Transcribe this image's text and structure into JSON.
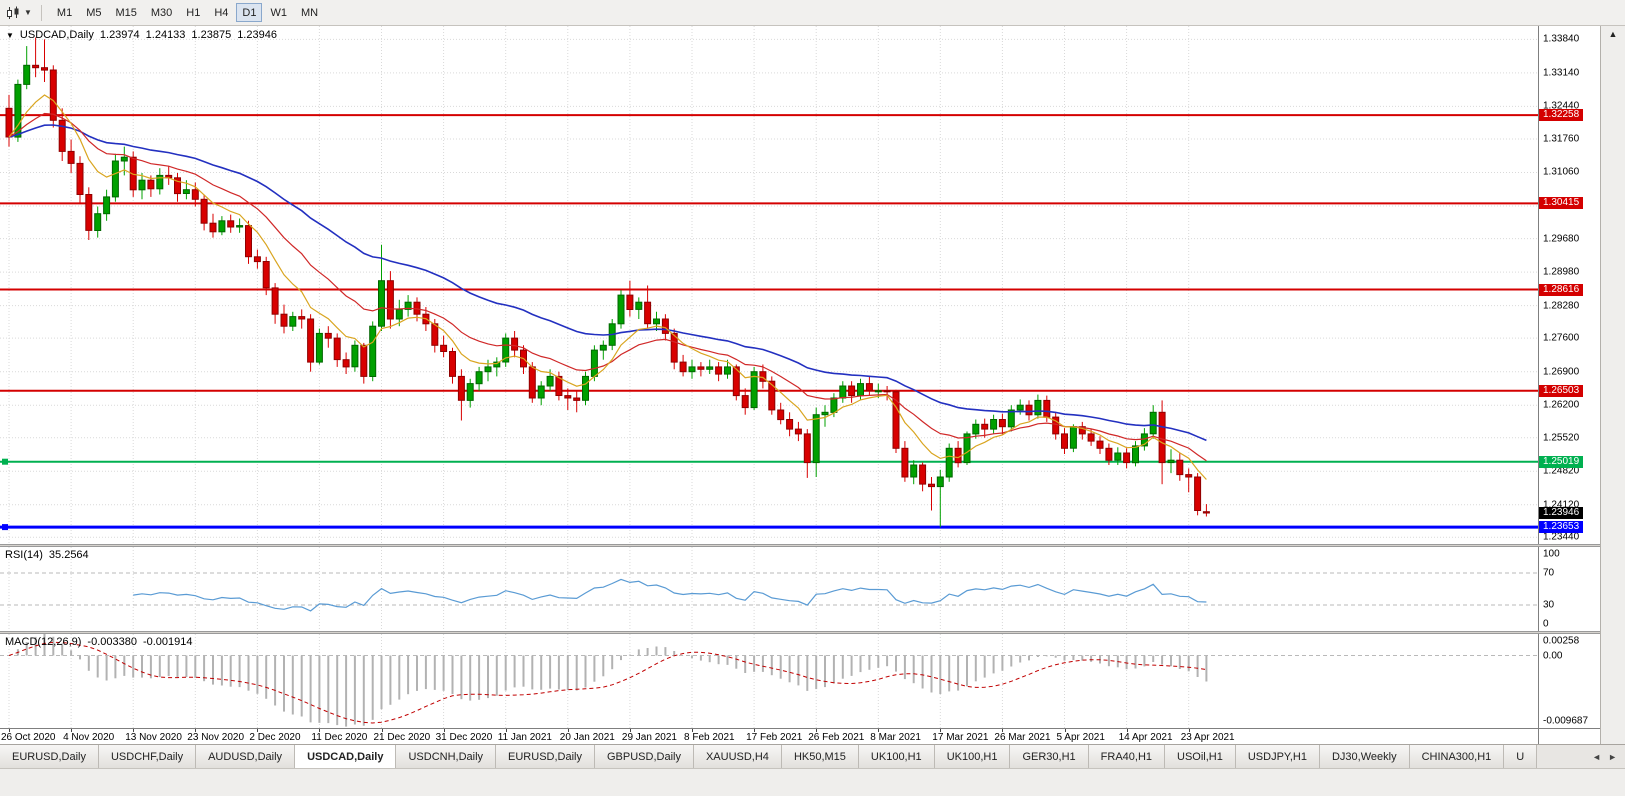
{
  "icons": {
    "collapse_triangle": "▼",
    "toolbar_caret": "▼",
    "strip_arrow": "▲"
  },
  "toolbar": {
    "timeframes": [
      "M1",
      "M5",
      "M15",
      "M30",
      "H1",
      "H4",
      "D1",
      "W1",
      "MN"
    ],
    "selected": "D1"
  },
  "chart": {
    "symbol_period": "USDCAD,Daily",
    "open": "1.23974",
    "high": "1.24133",
    "low": "1.23875",
    "close": "1.23946"
  },
  "rsi": {
    "name": "RSI(14)",
    "value": "35.2564",
    "period": 14,
    "levels": [
      70,
      30
    ],
    "scale": [
      "100",
      "70",
      "30",
      "0"
    ],
    "color": "#5a9bd4"
  },
  "macd": {
    "name": "MACD(12,26,9)",
    "value_main": "-0.003380",
    "value_signal": "-0.001914",
    "range": [
      -0.009687,
      0.00258
    ],
    "scale": [
      "0.00258",
      "0.00",
      "-0.009687"
    ],
    "histogram_color": "#b2b2b2",
    "signal_color": "#c00000"
  },
  "tabs": {
    "scroll_left": "◄",
    "scroll_right": "►",
    "items": [
      {
        "label": "EURUSD,Daily",
        "active": false
      },
      {
        "label": "USDCHF,Daily",
        "active": false
      },
      {
        "label": "AUDUSD,Daily",
        "active": false
      },
      {
        "label": "USDCAD,Daily",
        "active": true
      },
      {
        "label": "USDCNH,Daily",
        "active": false
      },
      {
        "label": "EURUSD,Daily",
        "active": false
      },
      {
        "label": "GBPUSD,Daily",
        "active": false
      },
      {
        "label": "XAUUSD,H4",
        "active": false
      },
      {
        "label": "HK50,M15",
        "active": false
      },
      {
        "label": "UK100,H1",
        "active": false
      },
      {
        "label": "UK100,H1",
        "active": false
      },
      {
        "label": "GER30,H1",
        "active": false
      },
      {
        "label": "FRA40,H1",
        "active": false
      },
      {
        "label": "USOil,H1",
        "active": false
      },
      {
        "label": "USDJPY,H1",
        "active": false
      },
      {
        "label": "DJ30,Weekly",
        "active": false
      },
      {
        "label": "CHINA300,H1",
        "active": false
      },
      {
        "label": "U",
        "active": false
      }
    ]
  },
  "chart_data": {
    "type": "candlestick",
    "symbol": "USDCAD",
    "timeframe": "Daily",
    "y_range": [
      1.233,
      1.3412
    ],
    "y_ticks": [
      "1.33840",
      "1.33140",
      "1.32440",
      "1.31760",
      "1.31060",
      "1.30360",
      "1.29680",
      "1.28980",
      "1.28280",
      "1.27600",
      "1.26900",
      "1.26200",
      "1.25520",
      "1.24820",
      "1.24120",
      "1.23440"
    ],
    "x_labels": [
      "26 Oct 2020",
      "4 Nov 2020",
      "13 Nov 2020",
      "23 Nov 2020",
      "2 Dec 2020",
      "11 Dec 2020",
      "21 Dec 2020",
      "31 Dec 2020",
      "11 Jan 2021",
      "20 Jan 2021",
      "29 Jan 2021",
      "8 Feb 2021",
      "17 Feb 2021",
      "26 Feb 2021",
      "8 Mar 2021",
      "17 Mar 2021",
      "26 Mar 2021",
      "5 Apr 2021",
      "14 Apr 2021",
      "23 Apr 2021"
    ],
    "x_label_indices": [
      0,
      7,
      14,
      21,
      28,
      35,
      42,
      49,
      56,
      63,
      70,
      77,
      84,
      91,
      98,
      105,
      112,
      119,
      126,
      133
    ],
    "hlines": [
      {
        "price": 1.32258,
        "label": "1.32258",
        "color": "#d40000",
        "thickness": 2,
        "handle": false
      },
      {
        "price": 1.30415,
        "label": "1.30415",
        "color": "#d40000",
        "thickness": 2,
        "handle": false
      },
      {
        "price": 1.28616,
        "label": "1.28616",
        "color": "#d40000",
        "thickness": 2,
        "handle": false
      },
      {
        "price": 1.26503,
        "label": "1.26503",
        "color": "#d40000",
        "thickness": 2,
        "handle": false
      },
      {
        "price": 1.25019,
        "label": "1.25019",
        "color": "#00b050",
        "thickness": 2,
        "handle": true
      },
      {
        "price": 1.23653,
        "label": "1.23653",
        "color": "#0000ff",
        "thickness": 3,
        "handle": true
      }
    ],
    "current_price": {
      "value": 1.23946,
      "label": "1.23946",
      "badge_color": "#000000"
    },
    "moving_averages": [
      {
        "period": 40,
        "type": "ema",
        "color": "#2330c0",
        "width": 1.6
      },
      {
        "period": 18,
        "type": "ema",
        "color": "#d02828",
        "width": 1.2
      },
      {
        "period": 8,
        "type": "ema",
        "color": "#d9a520",
        "width": 1.2
      }
    ],
    "colors": {
      "bull": "#00a000",
      "bull_border": "#006600",
      "bear": "#d80000",
      "bear_border": "#8f0000",
      "grid": "#d9d9d9"
    },
    "candles": [
      [
        1.324,
        1.3268,
        1.316,
        1.318
      ],
      [
        1.318,
        1.33,
        1.317,
        1.329
      ],
      [
        1.329,
        1.337,
        1.328,
        1.333
      ],
      [
        1.333,
        1.3388,
        1.3305,
        1.3325
      ],
      [
        1.3325,
        1.3384,
        1.3295,
        1.332
      ],
      [
        1.332,
        1.333,
        1.32,
        1.3215
      ],
      [
        1.3215,
        1.324,
        1.313,
        1.315
      ],
      [
        1.315,
        1.3175,
        1.3105,
        1.3125
      ],
      [
        1.3125,
        1.314,
        1.304,
        1.306
      ],
      [
        1.306,
        1.3075,
        1.2965,
        1.2985
      ],
      [
        1.2985,
        1.3035,
        1.297,
        1.302
      ],
      [
        1.302,
        1.307,
        1.3005,
        1.3055
      ],
      [
        1.3055,
        1.3145,
        1.3045,
        1.313
      ],
      [
        1.313,
        1.316,
        1.31,
        1.3138
      ],
      [
        1.3138,
        1.315,
        1.3055,
        1.307
      ],
      [
        1.307,
        1.3105,
        1.305,
        1.309
      ],
      [
        1.309,
        1.31,
        1.3055,
        1.3072
      ],
      [
        1.3072,
        1.3115,
        1.306,
        1.31
      ],
      [
        1.31,
        1.312,
        1.308,
        1.3095
      ],
      [
        1.3095,
        1.3105,
        1.3045,
        1.3062
      ],
      [
        1.3062,
        1.309,
        1.305,
        1.307
      ],
      [
        1.307,
        1.3085,
        1.3035,
        1.305
      ],
      [
        1.305,
        1.306,
        1.2985,
        1.3
      ],
      [
        1.3,
        1.302,
        1.297,
        1.2982
      ],
      [
        1.2982,
        1.3015,
        1.2975,
        1.3005
      ],
      [
        1.3005,
        1.3018,
        1.298,
        1.2992
      ],
      [
        1.2992,
        1.301,
        1.298,
        1.2995
      ],
      [
        1.2995,
        1.3005,
        1.2915,
        1.293
      ],
      [
        1.293,
        1.2945,
        1.2905,
        1.292
      ],
      [
        1.292,
        1.293,
        1.285,
        1.2865
      ],
      [
        1.2865,
        1.2875,
        1.279,
        1.281
      ],
      [
        1.281,
        1.283,
        1.277,
        1.2785
      ],
      [
        1.2785,
        1.2815,
        1.2775,
        1.2805
      ],
      [
        1.2805,
        1.282,
        1.278,
        1.28
      ],
      [
        1.28,
        1.281,
        1.269,
        1.271
      ],
      [
        1.271,
        1.278,
        1.2705,
        1.277
      ],
      [
        1.277,
        1.2785,
        1.274,
        1.276
      ],
      [
        1.276,
        1.277,
        1.27,
        1.2715
      ],
      [
        1.2715,
        1.273,
        1.2685,
        1.27
      ],
      [
        1.27,
        1.2755,
        1.269,
        1.2745
      ],
      [
        1.2745,
        1.275,
        1.2665,
        1.268
      ],
      [
        1.268,
        1.2795,
        1.267,
        1.2785
      ],
      [
        1.2785,
        1.2955,
        1.2775,
        1.288
      ],
      [
        1.288,
        1.29,
        1.278,
        1.28
      ],
      [
        1.28,
        1.284,
        1.2785,
        1.282
      ],
      [
        1.282,
        1.285,
        1.2805,
        1.2835
      ],
      [
        1.2835,
        1.2845,
        1.2795,
        1.281
      ],
      [
        1.281,
        1.2825,
        1.2775,
        1.279
      ],
      [
        1.279,
        1.28,
        1.273,
        1.2745
      ],
      [
        1.2745,
        1.2765,
        1.272,
        1.2732
      ],
      [
        1.2732,
        1.274,
        1.2665,
        1.268
      ],
      [
        1.268,
        1.2695,
        1.2588,
        1.263
      ],
      [
        1.263,
        1.2675,
        1.2615,
        1.2665
      ],
      [
        1.2665,
        1.27,
        1.265,
        1.269
      ],
      [
        1.269,
        1.2715,
        1.267,
        1.27
      ],
      [
        1.27,
        1.272,
        1.268,
        1.271
      ],
      [
        1.271,
        1.277,
        1.27,
        1.276
      ],
      [
        1.276,
        1.2775,
        1.272,
        1.2735
      ],
      [
        1.2735,
        1.2745,
        1.2685,
        1.27
      ],
      [
        1.27,
        1.271,
        1.2625,
        1.2635
      ],
      [
        1.2635,
        1.267,
        1.262,
        1.266
      ],
      [
        1.266,
        1.2695,
        1.265,
        1.268
      ],
      [
        1.268,
        1.269,
        1.263,
        1.264
      ],
      [
        1.264,
        1.2655,
        1.261,
        1.2635
      ],
      [
        1.2635,
        1.265,
        1.2605,
        1.263
      ],
      [
        1.263,
        1.269,
        1.262,
        1.268
      ],
      [
        1.268,
        1.2745,
        1.267,
        1.2735
      ],
      [
        1.2735,
        1.2755,
        1.2715,
        1.2745
      ],
      [
        1.2745,
        1.28,
        1.2735,
        1.279
      ],
      [
        1.279,
        1.286,
        1.278,
        1.285
      ],
      [
        1.285,
        1.288,
        1.2805,
        1.282
      ],
      [
        1.282,
        1.2845,
        1.28,
        1.2835
      ],
      [
        1.2835,
        1.287,
        1.278,
        1.279
      ],
      [
        1.279,
        1.2815,
        1.2775,
        1.28
      ],
      [
        1.28,
        1.281,
        1.2755,
        1.277
      ],
      [
        1.277,
        1.278,
        1.2695,
        1.271
      ],
      [
        1.271,
        1.2725,
        1.268,
        1.269
      ],
      [
        1.269,
        1.2715,
        1.2675,
        1.27
      ],
      [
        1.27,
        1.271,
        1.268,
        1.2695
      ],
      [
        1.2695,
        1.2715,
        1.2685,
        1.27
      ],
      [
        1.27,
        1.271,
        1.267,
        1.2685
      ],
      [
        1.2685,
        1.2715,
        1.2675,
        1.27
      ],
      [
        1.27,
        1.2705,
        1.263,
        1.264
      ],
      [
        1.264,
        1.2655,
        1.26,
        1.2615
      ],
      [
        1.2615,
        1.27,
        1.261,
        1.269
      ],
      [
        1.269,
        1.2705,
        1.2655,
        1.267
      ],
      [
        1.267,
        1.268,
        1.26,
        1.261
      ],
      [
        1.261,
        1.2625,
        1.258,
        1.259
      ],
      [
        1.259,
        1.2605,
        1.2555,
        1.257
      ],
      [
        1.257,
        1.2585,
        1.2545,
        1.256
      ],
      [
        1.256,
        1.257,
        1.2468,
        1.25
      ],
      [
        1.25,
        1.2615,
        1.247,
        1.26
      ],
      [
        1.26,
        1.262,
        1.2575,
        1.2605
      ],
      [
        1.2605,
        1.2645,
        1.2595,
        1.2635
      ],
      [
        1.2635,
        1.267,
        1.2625,
        1.266
      ],
      [
        1.266,
        1.267,
        1.2625,
        1.264
      ],
      [
        1.264,
        1.2675,
        1.263,
        1.2665
      ],
      [
        1.2665,
        1.268,
        1.264,
        1.265
      ],
      [
        1.265,
        1.2665,
        1.2635,
        1.265
      ],
      [
        1.265,
        1.266,
        1.263,
        1.2648
      ],
      [
        1.2648,
        1.2652,
        1.252,
        1.253
      ],
      [
        1.253,
        1.2545,
        1.246,
        1.247
      ],
      [
        1.247,
        1.2505,
        1.2455,
        1.2495
      ],
      [
        1.2495,
        1.25,
        1.244,
        1.2455
      ],
      [
        1.2455,
        1.247,
        1.24,
        1.245
      ],
      [
        1.245,
        1.2485,
        1.2365,
        1.247
      ],
      [
        1.247,
        1.254,
        1.246,
        1.253
      ],
      [
        1.253,
        1.2545,
        1.249,
        1.25
      ],
      [
        1.25,
        1.2565,
        1.2495,
        1.256
      ],
      [
        1.256,
        1.259,
        1.255,
        1.258
      ],
      [
        1.258,
        1.2592,
        1.2552,
        1.257
      ],
      [
        1.257,
        1.26,
        1.256,
        1.259
      ],
      [
        1.259,
        1.2602,
        1.2558,
        1.2575
      ],
      [
        1.2575,
        1.262,
        1.2565,
        1.261
      ],
      [
        1.261,
        1.2632,
        1.26,
        1.262
      ],
      [
        1.262,
        1.263,
        1.2588,
        1.26
      ],
      [
        1.26,
        1.2642,
        1.2592,
        1.263
      ],
      [
        1.263,
        1.264,
        1.2585,
        1.2595
      ],
      [
        1.2595,
        1.2605,
        1.2548,
        1.256
      ],
      [
        1.256,
        1.2572,
        1.2518,
        1.253
      ],
      [
        1.253,
        1.258,
        1.2522,
        1.2575
      ],
      [
        1.2575,
        1.2585,
        1.2548,
        1.256
      ],
      [
        1.256,
        1.257,
        1.2535,
        1.2545
      ],
      [
        1.2545,
        1.2555,
        1.2518,
        1.253
      ],
      [
        1.253,
        1.254,
        1.2495,
        1.2505
      ],
      [
        1.2505,
        1.2532,
        1.2495,
        1.252
      ],
      [
        1.252,
        1.253,
        1.2488,
        1.25
      ],
      [
        1.25,
        1.2545,
        1.2492,
        1.2535
      ],
      [
        1.2535,
        1.2572,
        1.2525,
        1.256
      ],
      [
        1.256,
        1.262,
        1.255,
        1.2605
      ],
      [
        1.2605,
        1.263,
        1.2455,
        1.25
      ],
      [
        1.25,
        1.2528,
        1.2478,
        1.2505
      ],
      [
        1.2505,
        1.252,
        1.2462,
        1.2475
      ],
      [
        1.2475,
        1.2488,
        1.2438,
        1.247
      ],
      [
        1.247,
        1.2478,
        1.239,
        1.24
      ],
      [
        1.23974,
        1.24133,
        1.23875,
        1.23946
      ]
    ]
  }
}
